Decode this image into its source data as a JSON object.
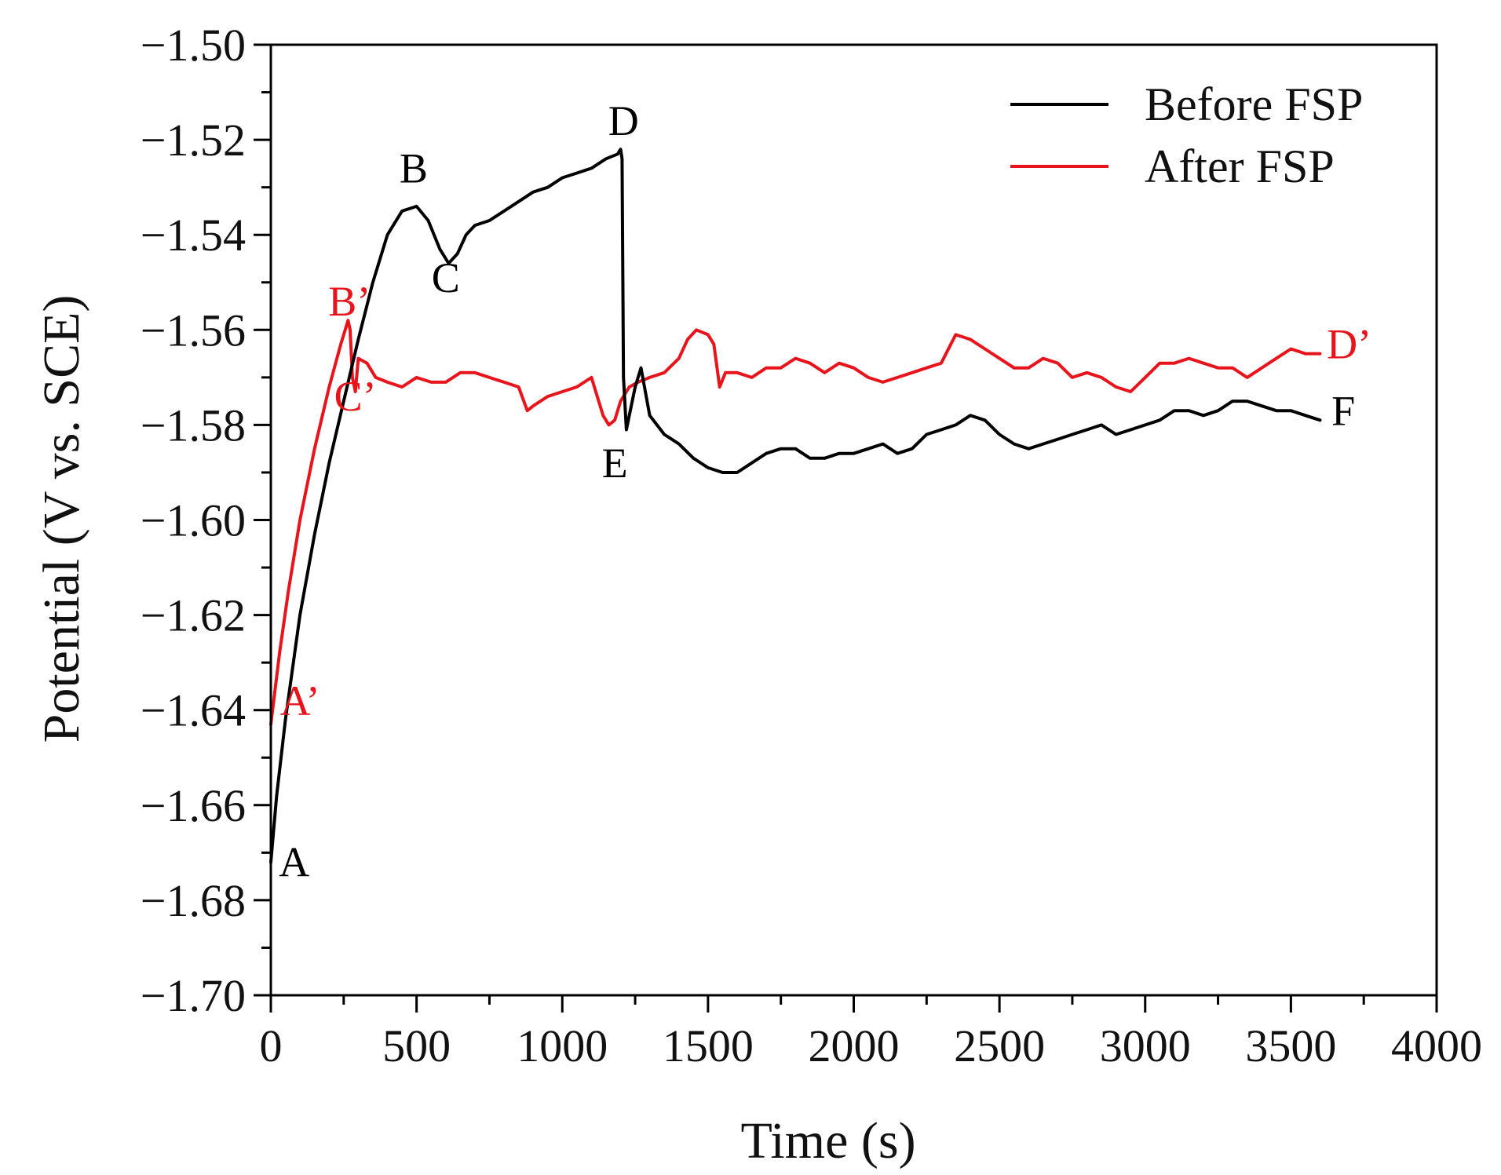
{
  "chart_data": {
    "type": "line",
    "title": "",
    "xlabel": "Time (s)",
    "ylabel": "Potential (V vs. SCE)",
    "xlim": [
      0,
      4000
    ],
    "ylim": [
      -1.7,
      -1.5
    ],
    "xticks": [
      "0",
      "500",
      "1000",
      "1500",
      "2000",
      "2500",
      "3000",
      "3500",
      "4000"
    ],
    "yticks": [
      "−1.50",
      "−1.52",
      "−1.54",
      "−1.56",
      "−1.58",
      "−1.60",
      "−1.62",
      "−1.64",
      "−1.66",
      "−1.68",
      "−1.70"
    ],
    "grid": false,
    "legend_position": "top-right",
    "series": [
      {
        "name": "Before FSP",
        "color": "#000000",
        "x": [
          0,
          20,
          50,
          100,
          150,
          200,
          250,
          300,
          350,
          400,
          450,
          500,
          540,
          580,
          610,
          640,
          670,
          700,
          750,
          800,
          850,
          900,
          950,
          1000,
          1050,
          1100,
          1150,
          1190,
          1200,
          1205,
          1210,
          1220,
          1230,
          1250,
          1270,
          1300,
          1350,
          1400,
          1450,
          1500,
          1550,
          1600,
          1650,
          1700,
          1750,
          1800,
          1850,
          1900,
          1950,
          2000,
          2050,
          2100,
          2150,
          2200,
          2250,
          2300,
          2350,
          2400,
          2450,
          2500,
          2550,
          2600,
          2650,
          2700,
          2750,
          2800,
          2850,
          2900,
          2950,
          3000,
          3050,
          3100,
          3150,
          3200,
          3250,
          3300,
          3350,
          3400,
          3450,
          3500,
          3550,
          3600
        ],
        "values": [
          -1.672,
          -1.658,
          -1.642,
          -1.62,
          -1.603,
          -1.588,
          -1.575,
          -1.562,
          -1.55,
          -1.54,
          -1.535,
          -1.534,
          -1.537,
          -1.543,
          -1.546,
          -1.544,
          -1.54,
          -1.538,
          -1.537,
          -1.535,
          -1.533,
          -1.531,
          -1.53,
          -1.528,
          -1.527,
          -1.526,
          -1.524,
          -1.523,
          -1.522,
          -1.524,
          -1.57,
          -1.581,
          -1.578,
          -1.572,
          -1.568,
          -1.578,
          -1.582,
          -1.584,
          -1.587,
          -1.589,
          -1.59,
          -1.59,
          -1.588,
          -1.586,
          -1.585,
          -1.585,
          -1.587,
          -1.587,
          -1.586,
          -1.586,
          -1.585,
          -1.584,
          -1.586,
          -1.585,
          -1.582,
          -1.581,
          -1.58,
          -1.578,
          -1.579,
          -1.582,
          -1.584,
          -1.585,
          -1.584,
          -1.583,
          -1.582,
          -1.581,
          -1.58,
          -1.582,
          -1.581,
          -1.58,
          -1.579,
          -1.577,
          -1.577,
          -1.578,
          -1.577,
          -1.575,
          -1.575,
          -1.576,
          -1.577,
          -1.577,
          -1.578,
          -1.579
        ]
      },
      {
        "name": "After FSP",
        "color": "#e8141c",
        "x": [
          0,
          30,
          60,
          100,
          150,
          200,
          240,
          265,
          272,
          280,
          290,
          300,
          330,
          360,
          400,
          450,
          500,
          550,
          600,
          650,
          700,
          750,
          800,
          850,
          880,
          900,
          950,
          1000,
          1050,
          1100,
          1140,
          1160,
          1180,
          1200,
          1230,
          1260,
          1300,
          1350,
          1400,
          1430,
          1460,
          1500,
          1520,
          1540,
          1560,
          1600,
          1650,
          1700,
          1750,
          1800,
          1850,
          1900,
          1950,
          2000,
          2050,
          2100,
          2150,
          2200,
          2250,
          2300,
          2350,
          2400,
          2450,
          2500,
          2550,
          2600,
          2650,
          2700,
          2750,
          2800,
          2850,
          2900,
          2950,
          3000,
          3050,
          3100,
          3150,
          3200,
          3250,
          3300,
          3350,
          3400,
          3450,
          3500,
          3550,
          3600
        ],
        "values": [
          -1.643,
          -1.628,
          -1.615,
          -1.6,
          -1.585,
          -1.572,
          -1.563,
          -1.558,
          -1.56,
          -1.57,
          -1.573,
          -1.566,
          -1.567,
          -1.57,
          -1.571,
          -1.572,
          -1.57,
          -1.571,
          -1.571,
          -1.569,
          -1.569,
          -1.57,
          -1.571,
          -1.572,
          -1.577,
          -1.576,
          -1.574,
          -1.573,
          -1.572,
          -1.57,
          -1.578,
          -1.58,
          -1.579,
          -1.575,
          -1.572,
          -1.571,
          -1.57,
          -1.569,
          -1.566,
          -1.562,
          -1.56,
          -1.561,
          -1.563,
          -1.572,
          -1.569,
          -1.569,
          -1.57,
          -1.568,
          -1.568,
          -1.566,
          -1.567,
          -1.569,
          -1.567,
          -1.568,
          -1.57,
          -1.571,
          -1.57,
          -1.569,
          -1.568,
          -1.567,
          -1.561,
          -1.562,
          -1.564,
          -1.566,
          -1.568,
          -1.568,
          -1.566,
          -1.567,
          -1.57,
          -1.569,
          -1.57,
          -1.572,
          -1.573,
          -1.57,
          -1.567,
          -1.567,
          -1.566,
          -1.567,
          -1.568,
          -1.568,
          -1.57,
          -1.568,
          -1.566,
          -1.564,
          -1.565,
          -1.565
        ]
      }
    ],
    "annotations": [
      {
        "text": "A",
        "x": 80,
        "y": -1.675,
        "color": "#000000"
      },
      {
        "text": "B",
        "x": 490,
        "y": -1.529,
        "color": "#000000"
      },
      {
        "text": "C",
        "x": 600,
        "y": -1.552,
        "color": "#000000"
      },
      {
        "text": "D",
        "x": 1210,
        "y": -1.519,
        "color": "#000000"
      },
      {
        "text": "E",
        "x": 1180,
        "y": -1.591,
        "color": "#000000"
      },
      {
        "text": "F",
        "x": 3680,
        "y": -1.58,
        "color": "#000000"
      },
      {
        "text": "A’",
        "x": 100,
        "y": -1.641,
        "color": "#e8141c"
      },
      {
        "text": "B’",
        "x": 270,
        "y": -1.557,
        "color": "#e8141c"
      },
      {
        "text": "C’",
        "x": 290,
        "y": -1.577,
        "color": "#e8141c"
      },
      {
        "text": "D’",
        "x": 3700,
        "y": -1.566,
        "color": "#e8141c"
      }
    ]
  }
}
